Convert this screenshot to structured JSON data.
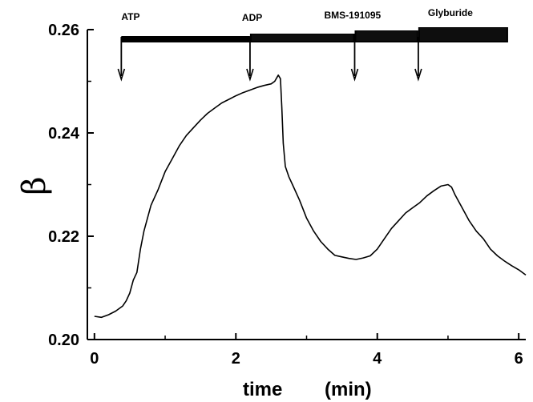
{
  "chart_data": {
    "type": "line",
    "title": "",
    "xlabel": "time",
    "xunit": "(min)",
    "ylabel": "β",
    "xlim": [
      -0.1,
      6.1
    ],
    "ylim": [
      0.2,
      0.26
    ],
    "xticks": [
      0,
      2,
      4,
      6
    ],
    "xtick_labels": [
      "0",
      "2",
      "4",
      "6"
    ],
    "yticks": [
      0.2,
      0.22,
      0.24,
      0.26
    ],
    "ytick_labels": [
      "0.20",
      "0.22",
      "0.24",
      "0.26"
    ],
    "grid": false,
    "series": [
      {
        "x": [
          0.0,
          0.1,
          0.2,
          0.3,
          0.4,
          0.45,
          0.5,
          0.55,
          0.6,
          0.65,
          0.7,
          0.75,
          0.8,
          0.9,
          1.0,
          1.1,
          1.2,
          1.3,
          1.4,
          1.5,
          1.6,
          1.7,
          1.8,
          1.9,
          2.0,
          2.1,
          2.2,
          2.3,
          2.4,
          2.5,
          2.55,
          2.6,
          2.63,
          2.65,
          2.67,
          2.7,
          2.75,
          2.8,
          2.9,
          3.0,
          3.1,
          3.2,
          3.3,
          3.4,
          3.5,
          3.6,
          3.7,
          3.8,
          3.9,
          4.0,
          4.1,
          4.2,
          4.3,
          4.4,
          4.5,
          4.6,
          4.7,
          4.8,
          4.9,
          5.0,
          5.05,
          5.1,
          5.2,
          5.3,
          5.4,
          5.5,
          5.6,
          5.7,
          5.8,
          5.9,
          6.0,
          6.1
        ],
        "y": [
          0.2045,
          0.2043,
          0.2048,
          0.2055,
          0.2065,
          0.2075,
          0.209,
          0.2115,
          0.213,
          0.2175,
          0.221,
          0.2235,
          0.226,
          0.229,
          0.2325,
          0.235,
          0.2375,
          0.2395,
          0.241,
          0.2425,
          0.2438,
          0.2448,
          0.2458,
          0.2465,
          0.2472,
          0.2478,
          0.2483,
          0.2488,
          0.2492,
          0.2495,
          0.25,
          0.2512,
          0.2505,
          0.245,
          0.238,
          0.2335,
          0.2315,
          0.23,
          0.227,
          0.2235,
          0.221,
          0.219,
          0.2175,
          0.2163,
          0.216,
          0.2157,
          0.2155,
          0.2158,
          0.2162,
          0.2175,
          0.2195,
          0.2215,
          0.223,
          0.2245,
          0.2255,
          0.2265,
          0.2278,
          0.2288,
          0.2297,
          0.23,
          0.2295,
          0.228,
          0.2255,
          0.223,
          0.221,
          0.2195,
          0.2175,
          0.2162,
          0.2152,
          0.2143,
          0.2135,
          0.2125
        ]
      }
    ],
    "annotations": [
      {
        "label": "ATP",
        "x": 0.38
      },
      {
        "label": "ADP",
        "x": 2.2
      },
      {
        "label": "BMS-191095",
        "x": 3.68
      },
      {
        "label": "Glyburide",
        "x": 4.58
      }
    ],
    "treatment_bar": {
      "segments": [
        {
          "x_start": 0.38,
          "x_end": 2.2,
          "level": 1
        },
        {
          "x_start": 2.2,
          "x_end": 3.68,
          "level": 2
        },
        {
          "x_start": 3.68,
          "x_end": 4.58,
          "level": 3
        },
        {
          "x_start": 4.58,
          "x_end": 5.85,
          "level": 4
        }
      ]
    }
  }
}
